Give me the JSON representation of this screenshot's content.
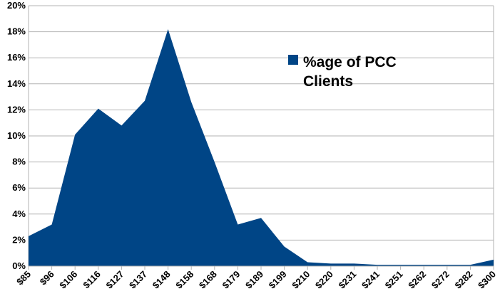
{
  "chart_data": {
    "type": "area",
    "categories": [
      "$85",
      "$96",
      "$106",
      "$116",
      "$127",
      "$137",
      "$148",
      "$158",
      "$168",
      "$179",
      "$189",
      "$199",
      "$210",
      "$220",
      "$231",
      "$241",
      "$251",
      "$262",
      "$272",
      "$282",
      "$300"
    ],
    "series": [
      {
        "name": "%age of PCC Clients",
        "color": "#004586",
        "values": [
          2.3,
          3.2,
          10.1,
          12.1,
          10.8,
          12.7,
          18.2,
          12.6,
          8.0,
          3.2,
          3.7,
          1.5,
          0.3,
          0.2,
          0.2,
          0.1,
          0.1,
          0.1,
          0.1,
          0.1,
          0.5
        ]
      }
    ],
    "y_ticks": [
      "0%",
      "2%",
      "4%",
      "6%",
      "8%",
      "10%",
      "12%",
      "14%",
      "16%",
      "18%",
      "20%"
    ],
    "ylim": [
      0,
      20
    ],
    "grid": true,
    "legend": {
      "placement": "upper-right",
      "line1": "%age of PCC",
      "line2": "Clients"
    }
  }
}
